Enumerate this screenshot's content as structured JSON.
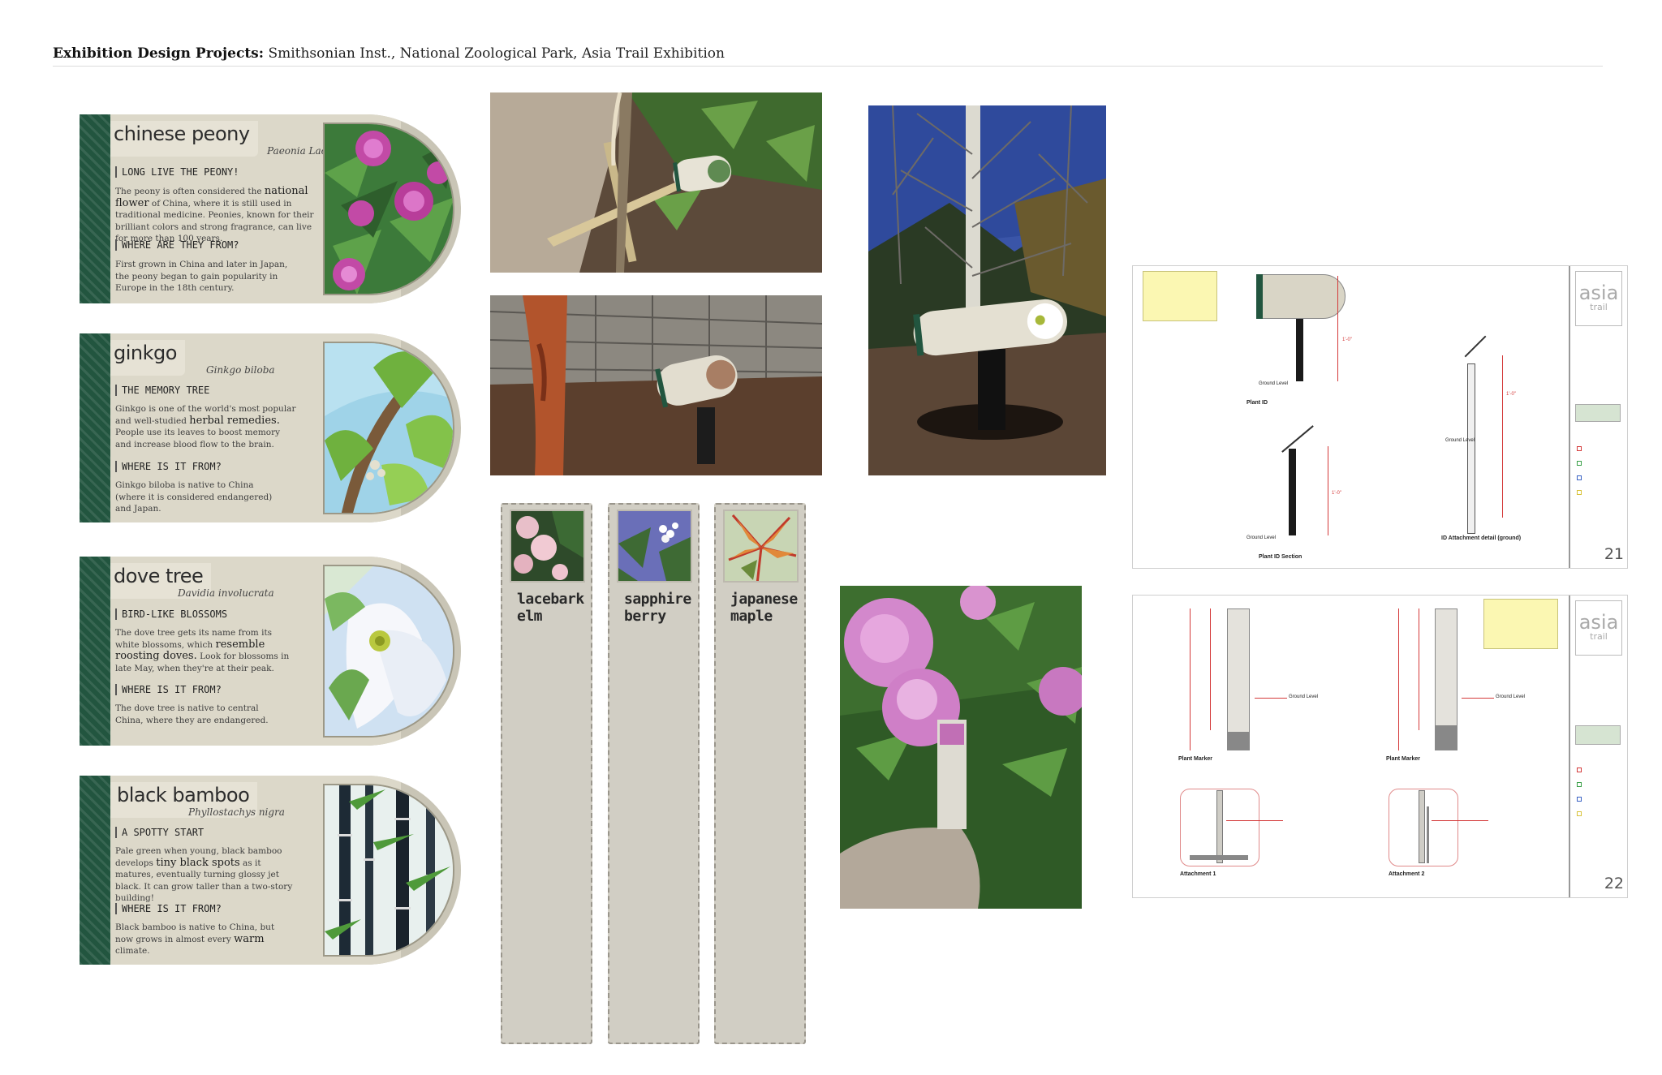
{
  "header": {
    "bold": "Exhibition Design Projects:",
    "rest": "Smithsonian Inst., National Zoological Park, Asia Trail Exhibition"
  },
  "signs": [
    {
      "common": "chinese peony",
      "latin": "Paeonia Lactiflora",
      "h1": "LONG LIVE THE PEONY!",
      "p1_a": "The peony is often considered the ",
      "p1_em": "national flower",
      "p1_b": " of China, where it is still used in traditional medicine. Peonies, known for their brilliant colors and strong fragrance, can live for more than 100 years.",
      "h2": "WHERE ARE THEY FROM?",
      "p2": "First grown in China and later in Japan, the peony began to gain popularity in Europe in the 18th century."
    },
    {
      "common": "ginkgo",
      "latin": "Ginkgo biloba",
      "h1": "THE MEMORY TREE",
      "p1_a": "Ginkgo is one of the world's most popular and well-studied ",
      "p1_em": "herbal remedies.",
      "p1_b": " People use its leaves to boost memory and increase blood flow to the brain.",
      "h2": "WHERE IS IT FROM?",
      "p2": "Ginkgo biloba is native to China (where it is considered endangered) and Japan."
    },
    {
      "common": "dove tree",
      "latin": "Davidia involucrata",
      "h1": "BIRD-LIKE BLOSSOMS",
      "p1_a": "The dove tree gets its name from its white blossoms, which ",
      "p1_em": "resemble roosting doves.",
      "p1_b": " Look for blossoms in late May, when they're at their peak.",
      "h2": "WHERE IS IT FROM?",
      "p2": "The dove tree is native to central China, where they are endangered."
    },
    {
      "common": "black bamboo",
      "latin": "Phyllostachys nigra",
      "h1": "A SPOTTY START",
      "p1_a": "Pale green when young, black bamboo develops ",
      "p1_em": "tiny black spots",
      "p1_b": " as it matures, eventually turning glossy jet black. It can grow taller than a two-story building!",
      "h2": "WHERE IS IT FROM?",
      "p2_a": "Black bamboo is native to China, but now grows in almost every ",
      "p2_em": "warm",
      "p2_b": " climate."
    }
  ],
  "markers": [
    {
      "line1": "lacebark",
      "line2": "elm"
    },
    {
      "line1": "sapphire",
      "line2": "berry"
    },
    {
      "line1": "japanese",
      "line2": "maple"
    }
  ],
  "sheets": [
    {
      "logo_top": "asia",
      "logo_bottom": "trail",
      "page": "21",
      "labels": {
        "plant_id": "Plant ID",
        "plant_id_section": "Plant ID Section",
        "attach_detail": "ID Attachment detail (ground)",
        "ground_level": "Ground Level",
        "dim": "1'-0\""
      }
    },
    {
      "logo_top": "asia",
      "logo_bottom": "trail",
      "page": "22",
      "labels": {
        "plant_marker": "Plant Marker",
        "attach1": "Attachment 1",
        "attach2": "Attachment 2",
        "ground_level": "Ground Level",
        "dim": "1'-0\""
      }
    }
  ],
  "colors": {
    "sign_band": "#22553f",
    "sign_panel": "#dcd8c9",
    "sign_frame": "#c9c5b6",
    "marker_bg": "#d1cec4",
    "drawing_red": "#d43a3a"
  }
}
